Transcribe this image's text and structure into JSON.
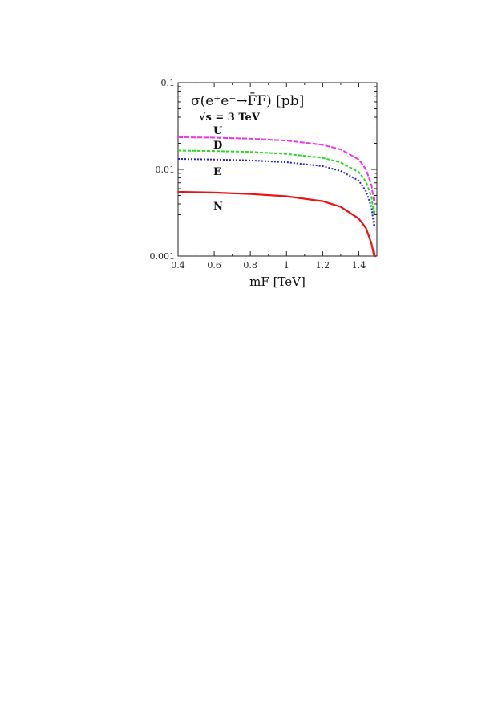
{
  "chart_data": {
    "type": "line",
    "title": "σ(e⁺e⁻→F̄F) [pb]",
    "subtitle": "√s = 3 TeV",
    "xlabel": "mF [TeV]",
    "ylabel": "",
    "xlim": [
      0.4,
      1.5
    ],
    "ylim": [
      0.001,
      0.1
    ],
    "yscale": "log",
    "grid": false,
    "legend": "inline labels",
    "xticks": [
      "0.4",
      "0.6",
      "0.8",
      "1",
      "1.2",
      "1.4"
    ],
    "yticks": [
      "0.001",
      "0.01",
      "0.1"
    ],
    "series": [
      {
        "name": "U",
        "color": "#ee33ee",
        "dash": "6,2",
        "x": [
          0.4,
          0.6,
          0.8,
          1.0,
          1.2,
          1.3,
          1.4,
          1.44,
          1.47,
          1.485
        ],
        "values": [
          0.0235,
          0.0232,
          0.0226,
          0.0215,
          0.0192,
          0.017,
          0.013,
          0.01,
          0.0066,
          0.0042
        ]
      },
      {
        "name": "D",
        "color": "#22dd22",
        "dash": "4,2",
        "x": [
          0.4,
          0.6,
          0.8,
          1.0,
          1.2,
          1.3,
          1.4,
          1.44,
          1.47,
          1.485
        ],
        "values": [
          0.0165,
          0.0163,
          0.0159,
          0.0151,
          0.0136,
          0.012,
          0.0093,
          0.0072,
          0.0048,
          0.003
        ]
      },
      {
        "name": "E",
        "color": "#2222cc",
        "dash": "2,2",
        "x": [
          0.4,
          0.6,
          0.8,
          1.0,
          1.2,
          1.3,
          1.4,
          1.44,
          1.47,
          1.485
        ],
        "values": [
          0.0132,
          0.013,
          0.0127,
          0.0121,
          0.0109,
          0.0096,
          0.0074,
          0.0056,
          0.0037,
          0.0022
        ]
      },
      {
        "name": "N",
        "color": "#ee1111",
        "dash": "",
        "x": [
          0.4,
          0.6,
          0.8,
          1.0,
          1.2,
          1.3,
          1.4,
          1.44,
          1.47,
          1.485,
          1.495
        ],
        "values": [
          0.0055,
          0.0054,
          0.0052,
          0.0049,
          0.0043,
          0.0037,
          0.0027,
          0.0021,
          0.0014,
          0.001,
          0.001
        ]
      }
    ]
  }
}
